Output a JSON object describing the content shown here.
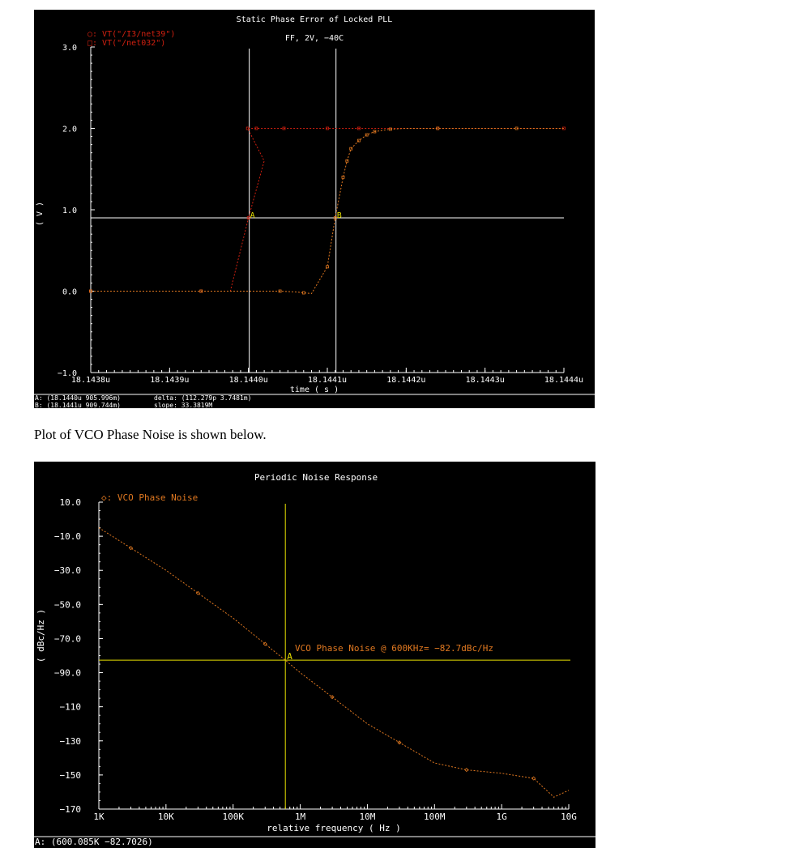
{
  "caption": "Plot of VCO Phase Noise is shown below.",
  "colors": {
    "background": "#000000",
    "axis": "#ffffff",
    "tick_text": "#ffffff",
    "series_red": "#d02010",
    "series_orange": "#e07820",
    "cursor1": "#ffffff",
    "cursor2": "#e8e000",
    "label_text": "#e07820"
  },
  "chart_data": [
    {
      "type": "line",
      "title": "Static Phase Error of Locked PLL",
      "subtitle": "FF, 2V, −40C",
      "xlabel": "time  ( s )",
      "ylabel": "( V )",
      "xticks": [
        "18.1438u",
        "18.1439u",
        "18.1440u",
        "18.1441u",
        "18.1442u",
        "18.1443u",
        "18.1444u"
      ],
      "yticks": [
        "3.0",
        "2.0",
        "1.0",
        "0.0",
        "−1.0"
      ],
      "xlim": [
        18.1438,
        18.1444
      ],
      "x_unit": "u",
      "ylim": [
        -1.0,
        3.0
      ],
      "legend": [
        "○: VT(\"/I3/net39\")",
        "□: VT(\"/net032\")"
      ],
      "legend_position": "top-left",
      "series": [
        {
          "name": "VT(\"/I3/net39\")",
          "color": "#d02010",
          "x": [
            18.1438,
            18.14384,
            18.14394,
            18.143977,
            18.144,
            18.14402,
            18.143999,
            18.144002,
            18.14401,
            18.144025,
            18.144045,
            18.14407,
            18.1441,
            18.14413,
            18.14414,
            18.14416,
            18.14424,
            18.14434,
            18.1444
          ],
          "y": [
            0.0,
            0.0,
            0.0,
            0.0,
            0.9,
            1.6,
            2.0,
            2.0,
            2.0,
            2.0,
            2.0,
            2.0,
            2.0,
            2.0,
            2.0,
            2.0,
            2.0,
            2.0,
            2.0
          ]
        },
        {
          "name": "VT(\"/net032\")",
          "color": "#e07820",
          "x": [
            18.1438,
            18.14384,
            18.14394,
            18.144,
            18.14404,
            18.14406,
            18.14407,
            18.14408,
            18.1441,
            18.14411,
            18.14412,
            18.144125,
            18.14413,
            18.14414,
            18.14415,
            18.14416,
            18.14418,
            18.1442,
            18.14424,
            18.14428,
            18.14434,
            18.1444
          ],
          "y": [
            0.0,
            0.0,
            0.0,
            0.0,
            0.0,
            -0.01,
            -0.02,
            -0.03,
            0.3,
            0.9,
            1.4,
            1.6,
            1.75,
            1.85,
            1.92,
            1.96,
            1.99,
            2.0,
            2.0,
            2.0,
            2.0,
            2.0
          ]
        }
      ],
      "hline": {
        "y": 0.9
      },
      "markers": [
        {
          "label": "A",
          "x": 18.144001,
          "y": 0.9
        },
        {
          "label": "B",
          "x": 18.144111,
          "y": 0.9
        }
      ],
      "readout": {
        "a": "A: (18.1440u 905.996m)",
        "b": "B: (18.1441u 909.744m)",
        "delta": "delta: (112.279p 3.7481m)",
        "slope": "slope: 33.3819M"
      }
    },
    {
      "type": "line",
      "title": "Periodic Noise Response",
      "xlabel": "relative frequency  ( Hz )",
      "ylabel": "( dBc/Hz )",
      "xscale": "log",
      "xticks": [
        "1K",
        "10K",
        "100K",
        "1M",
        "10M",
        "100M",
        "1G",
        "10G"
      ],
      "yticks": [
        "10.0",
        "−10.0",
        "−30.0",
        "−50.0",
        "−70.0",
        "−90.0",
        "−110",
        "−130",
        "−150",
        "−170"
      ],
      "xlim": [
        1000,
        10000000000
      ],
      "ylim": [
        -170,
        10
      ],
      "legend": [
        "◇: VCO Phase Noise"
      ],
      "legend_position": "top-left",
      "series": [
        {
          "name": "VCO Phase Noise",
          "color": "#e07820",
          "x": [
            1000,
            10000,
            100000,
            600085,
            1000000,
            10000000,
            100000000,
            300000000,
            1000000000,
            3000000000,
            6000000000,
            10000000000
          ],
          "y": [
            -5,
            -30,
            -58,
            -82.7,
            -90,
            -120,
            -143,
            -147,
            -149,
            -152,
            -163,
            -159
          ]
        }
      ],
      "marker": {
        "label": "A",
        "x": 600085,
        "y": -82.7
      },
      "annotation": "VCO Phase Noise @ 600KHz= −82.7dBc/Hz",
      "readout": "A: (600.085K −82.7026)"
    }
  ]
}
